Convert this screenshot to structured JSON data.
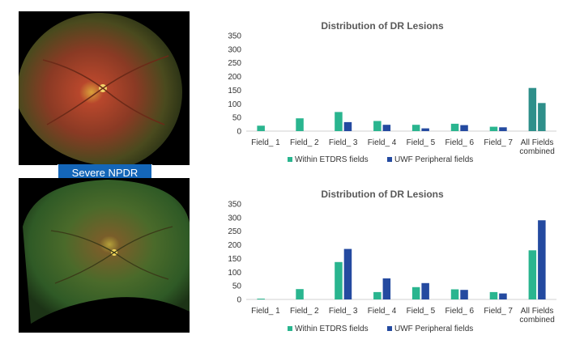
{
  "panel": {
    "severity_label": "Severe NPDR"
  },
  "colors": {
    "within": "#2ab58f",
    "uwf": "#244aa0",
    "combined_within": "#2e8f8a",
    "combined_uwf": "#2e8f8a"
  },
  "chart_data": [
    {
      "type": "bar",
      "title": "Distribution of DR Lesions",
      "categories": [
        "Field_ 1",
        "Field_ 2",
        "Field_ 3",
        "Field_ 4",
        "Field_ 5",
        "Field_ 6",
        "Field_ 7",
        "All Fields combined"
      ],
      "series": [
        {
          "name": "Within ETDRS fields",
          "values": [
            20,
            47,
            70,
            37,
            23,
            27,
            16,
            158
          ]
        },
        {
          "name": "UWF Peripheral fields",
          "values": [
            0,
            0,
            33,
            23,
            10,
            22,
            14,
            103
          ]
        }
      ],
      "ylim": [
        0,
        350
      ],
      "yticks": [
        0,
        50,
        100,
        150,
        200,
        250,
        300,
        350
      ],
      "legend": "bottom",
      "grid": false
    },
    {
      "type": "bar",
      "title": "Distribution of DR Lesions",
      "categories": [
        "Field_ 1",
        "Field_ 2",
        "Field_ 3",
        "Field_ 4",
        "Field_ 5",
        "Field_ 6",
        "Field_ 7",
        "All Fields combined"
      ],
      "series": [
        {
          "name": "Within ETDRS fields",
          "values": [
            3,
            38,
            137,
            27,
            45,
            37,
            27,
            180
          ]
        },
        {
          "name": "UWF Peripheral fields",
          "values": [
            0,
            0,
            185,
            77,
            60,
            35,
            22,
            290
          ]
        }
      ],
      "ylim": [
        0,
        350
      ],
      "yticks": [
        0,
        50,
        100,
        150,
        200,
        250,
        300,
        350
      ],
      "legend": "bottom",
      "grid": false
    }
  ]
}
